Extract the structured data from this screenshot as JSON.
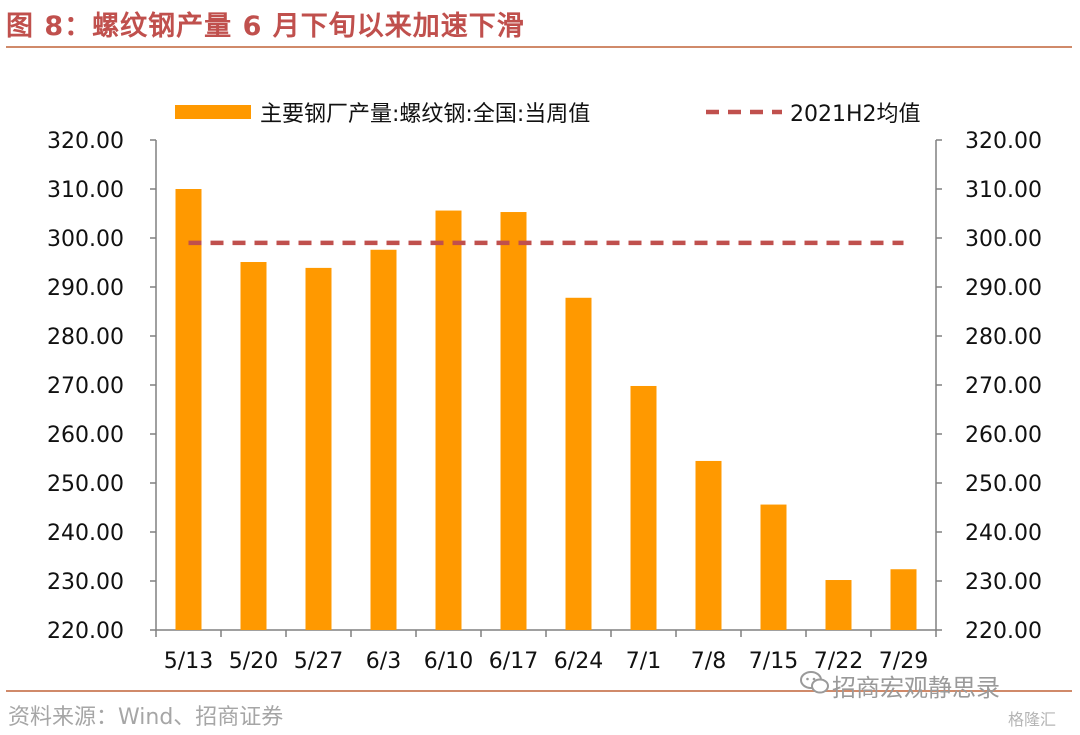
{
  "header": {
    "figure_title": "图 8：螺纹钢产量 6 月下旬以来加速下滑"
  },
  "footer": {
    "source": "资料来源：Wind、招商证券",
    "watermark": "招商宏观静思录",
    "watermark_small": "格隆汇"
  },
  "chart_data": {
    "type": "bar",
    "categories": [
      "5/13",
      "5/20",
      "5/27",
      "6/3",
      "6/10",
      "6/17",
      "6/24",
      "7/1",
      "7/8",
      "7/15",
      "7/22",
      "7/29"
    ],
    "series": [
      {
        "name": "主要钢厂产量:螺纹钢:全国:当周值",
        "type": "bar",
        "color": "#ff9900",
        "values": [
          310.0,
          295.1,
          293.9,
          297.6,
          305.6,
          305.3,
          287.8,
          269.8,
          254.5,
          245.6,
          230.2,
          232.4
        ]
      },
      {
        "name": "2021H2均值",
        "type": "line",
        "style": "dashed",
        "color": "#c0504d",
        "values": [
          299.0,
          299.0,
          299.0,
          299.0,
          299.0,
          299.0,
          299.0,
          299.0,
          299.0,
          299.0,
          299.0,
          299.0
        ]
      }
    ],
    "ylim": [
      220,
      320
    ],
    "yticks": [
      "220.00",
      "230.00",
      "240.00",
      "250.00",
      "260.00",
      "270.00",
      "280.00",
      "290.00",
      "300.00",
      "310.00",
      "320.00"
    ],
    "y2ticks": [
      "220.00",
      "230.00",
      "240.00",
      "250.00",
      "260.00",
      "270.00",
      "280.00",
      "290.00",
      "300.00",
      "310.00",
      "320.00"
    ],
    "legend_position": "top",
    "grid": false
  }
}
